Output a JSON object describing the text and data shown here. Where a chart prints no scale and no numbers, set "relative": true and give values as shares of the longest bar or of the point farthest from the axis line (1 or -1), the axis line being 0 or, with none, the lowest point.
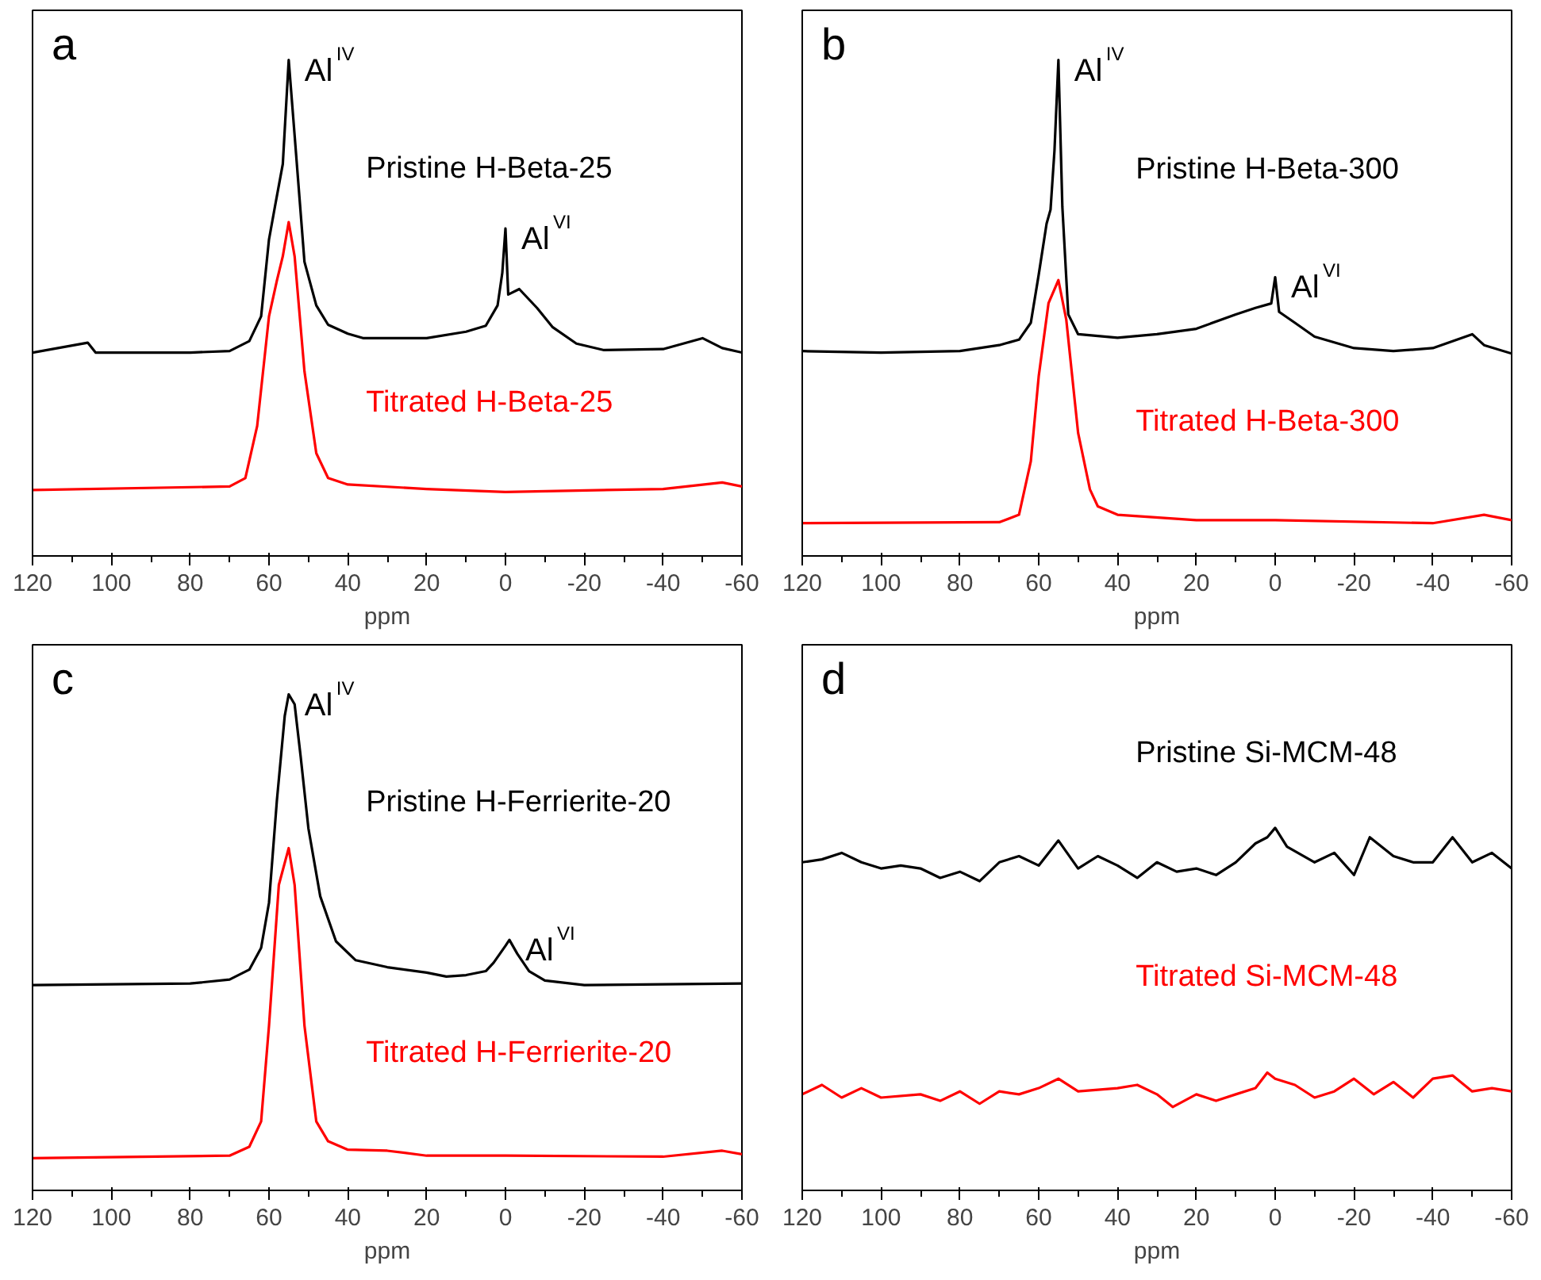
{
  "chart_data": [
    {
      "type": "line",
      "relative": true,
      "xlabel": "ppm",
      "xlim": [
        120,
        -60
      ],
      "xticks": [
        120,
        {
          "value": 110,
          "label": null
        },
        100,
        {
          "value": 90,
          "label": null
        },
        80,
        {
          "value": 70,
          "label": null
        },
        60,
        {
          "value": 50,
          "label": null
        },
        40,
        {
          "value": 30,
          "label": null
        },
        20,
        {
          "value": 10,
          "label": null
        },
        0,
        {
          "value": -10,
          "label": null
        },
        -20,
        {
          "value": -30,
          "label": null
        },
        -40,
        {
          "value": -50,
          "label": null
        },
        -60
      ],
      "grid": false,
      "annotations": [
        "a",
        {
          "text": "Al$^{IV}$",
          "x": 55,
          "y": 1.0
        },
        {
          "text": "Al$^{VI}$",
          "x": 0,
          "y": 0.66
        }
      ],
      "series": [
        {
          "name": "Pristine H-Beta-25",
          "color": "#000000",
          "x": [
            120,
            106,
            104,
            80,
            70,
            65,
            62,
            60,
            58.5,
            56.5,
            55,
            53.5,
            51,
            48,
            45,
            40,
            36,
            20,
            10,
            5,
            2,
            0.8,
            0,
            -0.7,
            -3.5,
            -8,
            -12,
            -18,
            -25,
            -40,
            -50,
            -55,
            -60
          ],
          "values": [
            0.41,
            0.43,
            0.41,
            0.41,
            0.413,
            0.433,
            0.483,
            0.638,
            0.704,
            0.79,
            1.0,
            0.848,
            0.593,
            0.505,
            0.466,
            0.448,
            0.439,
            0.439,
            0.452,
            0.464,
            0.505,
            0.571,
            0.66,
            0.527,
            0.538,
            0.5,
            0.461,
            0.428,
            0.415,
            0.417,
            0.439,
            0.419,
            0.41
          ]
        },
        {
          "name": "Titrated H-Beta-25",
          "color": "#ff0000",
          "x": [
            120,
            70,
            66,
            63,
            60,
            58,
            56.5,
            55,
            53.5,
            51,
            48,
            45,
            40,
            20,
            0,
            -40,
            -55,
            -60
          ],
          "values": [
            0.133,
            0.14,
            0.157,
            0.262,
            0.483,
            0.555,
            0.604,
            0.673,
            0.604,
            0.372,
            0.207,
            0.157,
            0.144,
            0.135,
            0.129,
            0.135,
            0.148,
            0.14
          ]
        }
      ]
    },
    {
      "type": "line",
      "relative": true,
      "xlabel": "ppm",
      "xlim": [
        120,
        -60
      ],
      "xticks": [
        120,
        {
          "value": 110,
          "label": null
        },
        100,
        {
          "value": 90,
          "label": null
        },
        80,
        {
          "value": 70,
          "label": null
        },
        60,
        {
          "value": 50,
          "label": null
        },
        40,
        {
          "value": 30,
          "label": null
        },
        20,
        {
          "value": 10,
          "label": null
        },
        0,
        {
          "value": -10,
          "label": null
        },
        -20,
        {
          "value": -30,
          "label": null
        },
        -40,
        {
          "value": -50,
          "label": null
        },
        -60
      ],
      "grid": false,
      "annotations": [
        "b",
        {
          "text": "Al$^{IV}$",
          "x": 55,
          "y": 1.0
        },
        {
          "text": "Al$^{VI}$",
          "x": 0,
          "y": 0.562
        }
      ],
      "series": [
        {
          "name": "Pristine H-Beta-300",
          "color": "#000000",
          "x": [
            120,
            100,
            80,
            70,
            65,
            62,
            60,
            58,
            57,
            56,
            55,
            54,
            52.5,
            50,
            40,
            30,
            20,
            10,
            5,
            1,
            0,
            -1,
            -5,
            -10,
            -20,
            -30,
            -40,
            -50,
            -53,
            -60
          ],
          "values": [
            0.413,
            0.41,
            0.413,
            0.425,
            0.436,
            0.47,
            0.567,
            0.67,
            0.698,
            0.817,
            1.0,
            0.704,
            0.487,
            0.447,
            0.44,
            0.447,
            0.458,
            0.487,
            0.5,
            0.509,
            0.562,
            0.492,
            0.47,
            0.442,
            0.419,
            0.413,
            0.419,
            0.447,
            0.425,
            0.408
          ]
        },
        {
          "name": "Titrated H-Beta-300",
          "color": "#ff0000",
          "x": [
            120,
            70,
            65,
            62,
            60,
            57.5,
            55,
            53,
            50,
            47,
            45,
            40,
            20,
            0,
            -40,
            -53,
            -60
          ],
          "values": [
            0.066,
            0.068,
            0.083,
            0.191,
            0.362,
            0.51,
            0.556,
            0.476,
            0.248,
            0.134,
            0.1,
            0.083,
            0.072,
            0.072,
            0.066,
            0.083,
            0.072
          ]
        }
      ]
    },
    {
      "type": "line",
      "relative": true,
      "xlabel": "ppm",
      "xlim": [
        120,
        -60
      ],
      "xticks": [
        120,
        {
          "value": 110,
          "label": null
        },
        100,
        {
          "value": 90,
          "label": null
        },
        80,
        {
          "value": 70,
          "label": null
        },
        60,
        {
          "value": 50,
          "label": null
        },
        40,
        {
          "value": 30,
          "label": null
        },
        20,
        {
          "value": 10,
          "label": null
        },
        0,
        {
          "value": -10,
          "label": null
        },
        -20,
        {
          "value": -30,
          "label": null
        },
        -40,
        {
          "value": -50,
          "label": null
        },
        -60
      ],
      "grid": false,
      "annotations": [
        "c",
        {
          "text": "Al$^{IV}$",
          "x": 55,
          "y": 1.0
        },
        {
          "text": "Al$^{VI}$",
          "x": -1,
          "y": 0.505
        }
      ],
      "series": [
        {
          "name": "Pristine H-Ferrierite-20",
          "color": "#000000",
          "x": [
            120,
            80,
            70,
            65,
            62,
            60,
            58,
            56,
            55,
            53.5,
            52,
            50,
            47,
            43,
            38,
            30,
            20,
            15,
            10,
            5,
            3,
            0,
            -1,
            -3,
            -6,
            -10,
            -20,
            -60
          ],
          "values": [
            0.414,
            0.417,
            0.425,
            0.445,
            0.489,
            0.58,
            0.786,
            0.957,
            1.0,
            0.98,
            0.877,
            0.73,
            0.593,
            0.502,
            0.464,
            0.45,
            0.439,
            0.431,
            0.434,
            0.442,
            0.459,
            0.493,
            0.505,
            0.477,
            0.442,
            0.423,
            0.414,
            0.417
          ]
        },
        {
          "name": "Titrated H-Ferrierite-20",
          "color": "#ff0000",
          "x": [
            120,
            70,
            65,
            62,
            60,
            57.5,
            55,
            53.5,
            51,
            48,
            45,
            40,
            30,
            20,
            0,
            -40,
            -55,
            -60
          ],
          "values": [
            0.065,
            0.07,
            0.088,
            0.139,
            0.332,
            0.616,
            0.69,
            0.616,
            0.332,
            0.139,
            0.099,
            0.082,
            0.08,
            0.07,
            0.07,
            0.068,
            0.08,
            0.073
          ]
        }
      ]
    },
    {
      "type": "line",
      "relative": true,
      "xlabel": "ppm",
      "xlim": [
        120,
        -60
      ],
      "xticks": [
        120,
        {
          "value": 110,
          "label": null
        },
        100,
        {
          "value": 90,
          "label": null
        },
        80,
        {
          "value": 70,
          "label": null
        },
        60,
        {
          "value": 50,
          "label": null
        },
        40,
        {
          "value": 30,
          "label": null
        },
        20,
        {
          "value": 10,
          "label": null
        },
        0,
        {
          "value": -10,
          "label": null
        },
        -20,
        {
          "value": -30,
          "label": null
        },
        -40,
        {
          "value": -50,
          "label": null
        },
        -60
      ],
      "grid": false,
      "annotations": [
        "d"
      ],
      "series": [
        {
          "name": "Pristine Si-MCM-48",
          "color": "#000000",
          "x": [
            120,
            115,
            110,
            105,
            100,
            95,
            90,
            85,
            80,
            75,
            70,
            65,
            60,
            55,
            50,
            45,
            40,
            35,
            30,
            25,
            20,
            15,
            10,
            5,
            2,
            0,
            -3,
            -10,
            -15,
            -20,
            -24,
            -30,
            -35,
            -40,
            -45,
            -50,
            -55,
            -60
          ],
          "values": [
            0.905,
            0.913,
            0.931,
            0.905,
            0.888,
            0.896,
            0.888,
            0.862,
            0.879,
            0.853,
            0.905,
            0.922,
            0.896,
            0.965,
            0.888,
            0.922,
            0.896,
            0.862,
            0.905,
            0.879,
            0.888,
            0.87,
            0.905,
            0.957,
            0.974,
            1.0,
            0.948,
            0.905,
            0.931,
            0.87,
            0.974,
            0.922,
            0.905,
            0.905,
            0.974,
            0.905,
            0.931,
            0.888
          ]
        },
        {
          "name": "Titrated Si-MCM-48",
          "color": "#ff0000",
          "x": [
            120,
            115,
            110,
            105,
            100,
            90,
            85,
            80,
            75,
            70,
            65,
            60,
            55,
            50,
            40,
            35,
            30,
            26,
            20,
            15,
            10,
            5,
            2,
            0,
            -5,
            -10,
            -15,
            -20,
            -25,
            -30,
            -35,
            -40,
            -45,
            -50,
            -55,
            -60
          ],
          "values": [
            0.265,
            0.291,
            0.256,
            0.282,
            0.256,
            0.265,
            0.247,
            0.273,
            0.239,
            0.273,
            0.265,
            0.282,
            0.308,
            0.273,
            0.282,
            0.291,
            0.265,
            0.23,
            0.265,
            0.247,
            0.265,
            0.282,
            0.325,
            0.308,
            0.291,
            0.256,
            0.273,
            0.308,
            0.265,
            0.299,
            0.256,
            0.308,
            0.317,
            0.273,
            0.282,
            0.273
          ]
        }
      ]
    }
  ]
}
